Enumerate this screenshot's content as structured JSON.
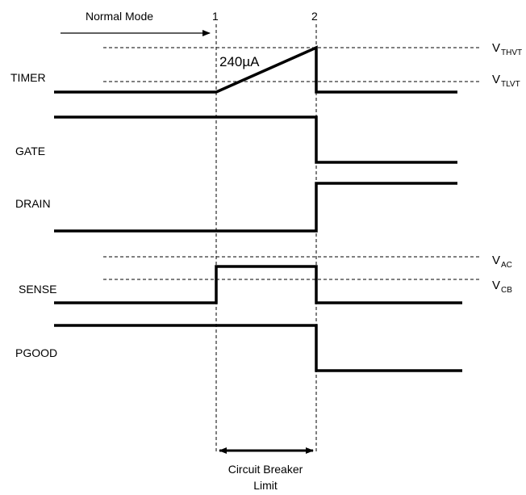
{
  "header": {
    "mode_label": "Normal Mode",
    "marker_1": "1",
    "marker_2": "2"
  },
  "ramp_current": "240µA",
  "levels": {
    "vthvt": {
      "main": "V",
      "sub": "THVT"
    },
    "vtlvt": {
      "main": "V",
      "sub": "TLVT"
    },
    "vac": {
      "main": "V",
      "sub": "AC"
    },
    "vcb": {
      "main": "V",
      "sub": "CB"
    }
  },
  "signals": [
    "TIMER",
    "GATE",
    "DRAIN",
    "SENSE",
    "PGOOD"
  ],
  "footer": {
    "line1": "Circuit Breaker",
    "line2": "Limit"
  }
}
